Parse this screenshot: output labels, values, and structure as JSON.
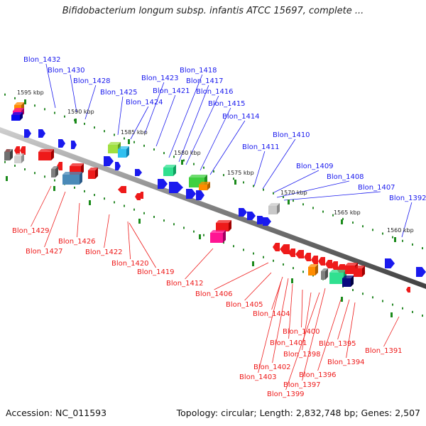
{
  "title": "Bifidobacterium longum subsp. infantis ATCC 15697, complete ...",
  "footer": {
    "accession": "Accession: NC_011593",
    "info": "Topology: circular; Length: 2,832,748 bp; Genes: 2,507"
  },
  "colors": {
    "forward": "#1a1aee",
    "reverse": "#ee1a1a",
    "axis": "#808080",
    "tick": "#1a8a1a"
  },
  "ticks": [
    {
      "id": "t1595",
      "label": "1595 kbp"
    },
    {
      "id": "t1590",
      "label": "1590 kbp"
    },
    {
      "id": "t1585",
      "label": "1585 kbp"
    },
    {
      "id": "t1580",
      "label": "1580 kbp"
    },
    {
      "id": "t1575",
      "label": "1575 kbp"
    },
    {
      "id": "t1570",
      "label": "1570 kbp"
    },
    {
      "id": "t1565",
      "label": "1565 kbp"
    },
    {
      "id": "t1560",
      "label": "1560 kbp"
    }
  ],
  "forward_labels": [
    "Blon_1432",
    "Blon_1430",
    "Blon_1428",
    "Blon_1425",
    "Blon_1424",
    "Blon_1423",
    "Blon_1421",
    "Blon_1418",
    "Blon_1417",
    "Blon_1416",
    "Blon_1415",
    "Blon_1414",
    "Blon_1411",
    "Blon_1410",
    "Blon_1409",
    "Blon_1408",
    "Blon_1407",
    "Blon_1392"
  ],
  "reverse_labels": [
    "Blon_1429",
    "Blon_1427",
    "Blon_1426",
    "Blon_1422",
    "Blon_1420",
    "Blon_1419",
    "Blon_1412",
    "Blon_1406",
    "Blon_1405",
    "Blon_1404",
    "Blon_1400",
    "Blon_1401",
    "Blon_1398",
    "Blon_1402",
    "Blon_1403",
    "Blon_1399",
    "Blon_1397",
    "Blon_1396",
    "Blon_1395",
    "Blon_1394",
    "Blon_1391"
  ]
}
